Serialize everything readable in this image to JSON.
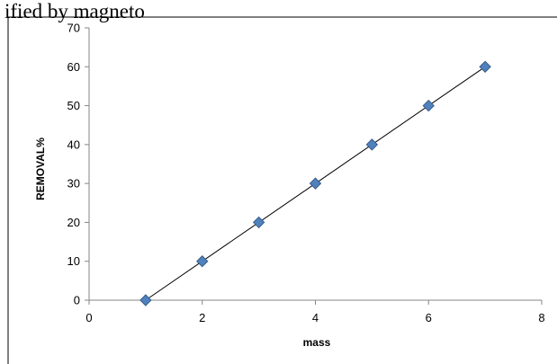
{
  "caption_fragment": "ified by magneto",
  "chart_data": {
    "type": "scatter",
    "title": "",
    "xlabel": "mass",
    "ylabel": "REMOVAL%",
    "xlim": [
      0,
      8
    ],
    "ylim": [
      0,
      70
    ],
    "x_ticks": [
      0,
      2,
      4,
      6,
      8
    ],
    "y_ticks": [
      0,
      10,
      20,
      30,
      40,
      50,
      60,
      70
    ],
    "grid": false,
    "legend": "none",
    "marker": "diamond",
    "marker_color": "#4f81bd",
    "trendline": "linear",
    "trendline_color": "#000000",
    "series": [
      {
        "x": [
          1,
          2,
          3,
          4,
          5,
          6,
          7
        ],
        "y": [
          0,
          10,
          20,
          30,
          40,
          50,
          60
        ]
      }
    ]
  }
}
